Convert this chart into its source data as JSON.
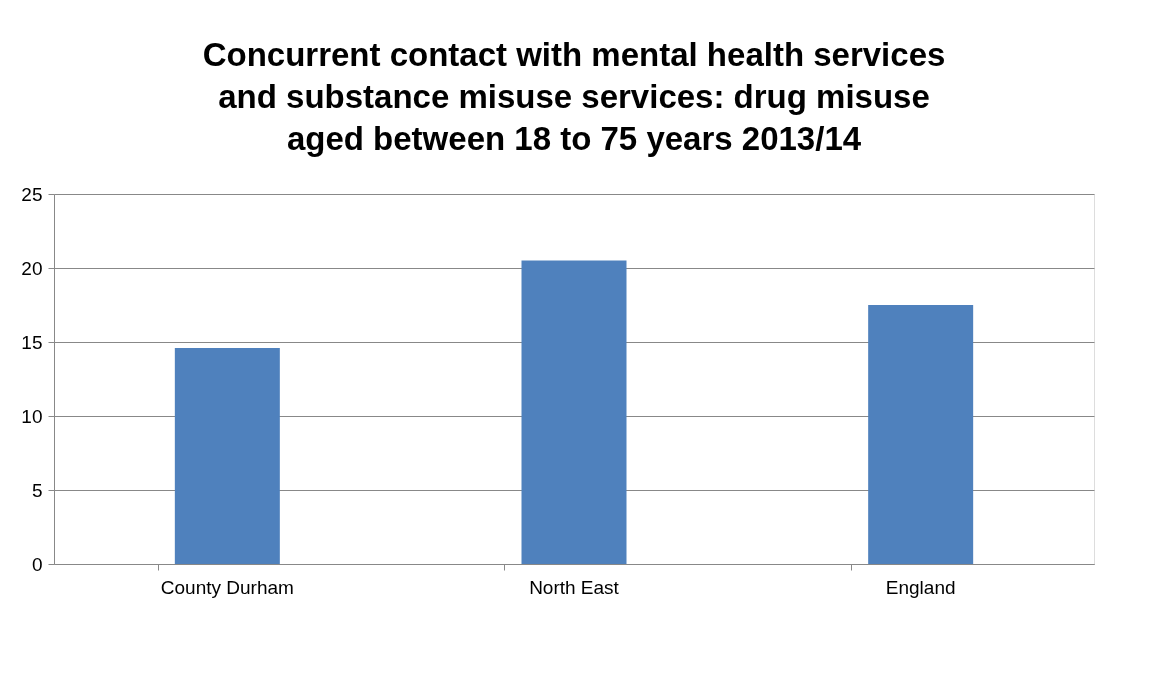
{
  "chart_data": {
    "type": "bar",
    "title": "Concurrent contact with mental health services and substance misuse services: drug misuse aged between 18 to 75 years 2013/14",
    "categories": [
      "County Durham",
      "North East",
      "England",
      null
    ],
    "values": [
      14.6,
      20.5,
      17.5,
      null
    ],
    "color": "#4f81bd",
    "ylim": [
      0,
      25
    ],
    "yticks": [
      0,
      5,
      10,
      15,
      20,
      25
    ],
    "grid": "y"
  }
}
